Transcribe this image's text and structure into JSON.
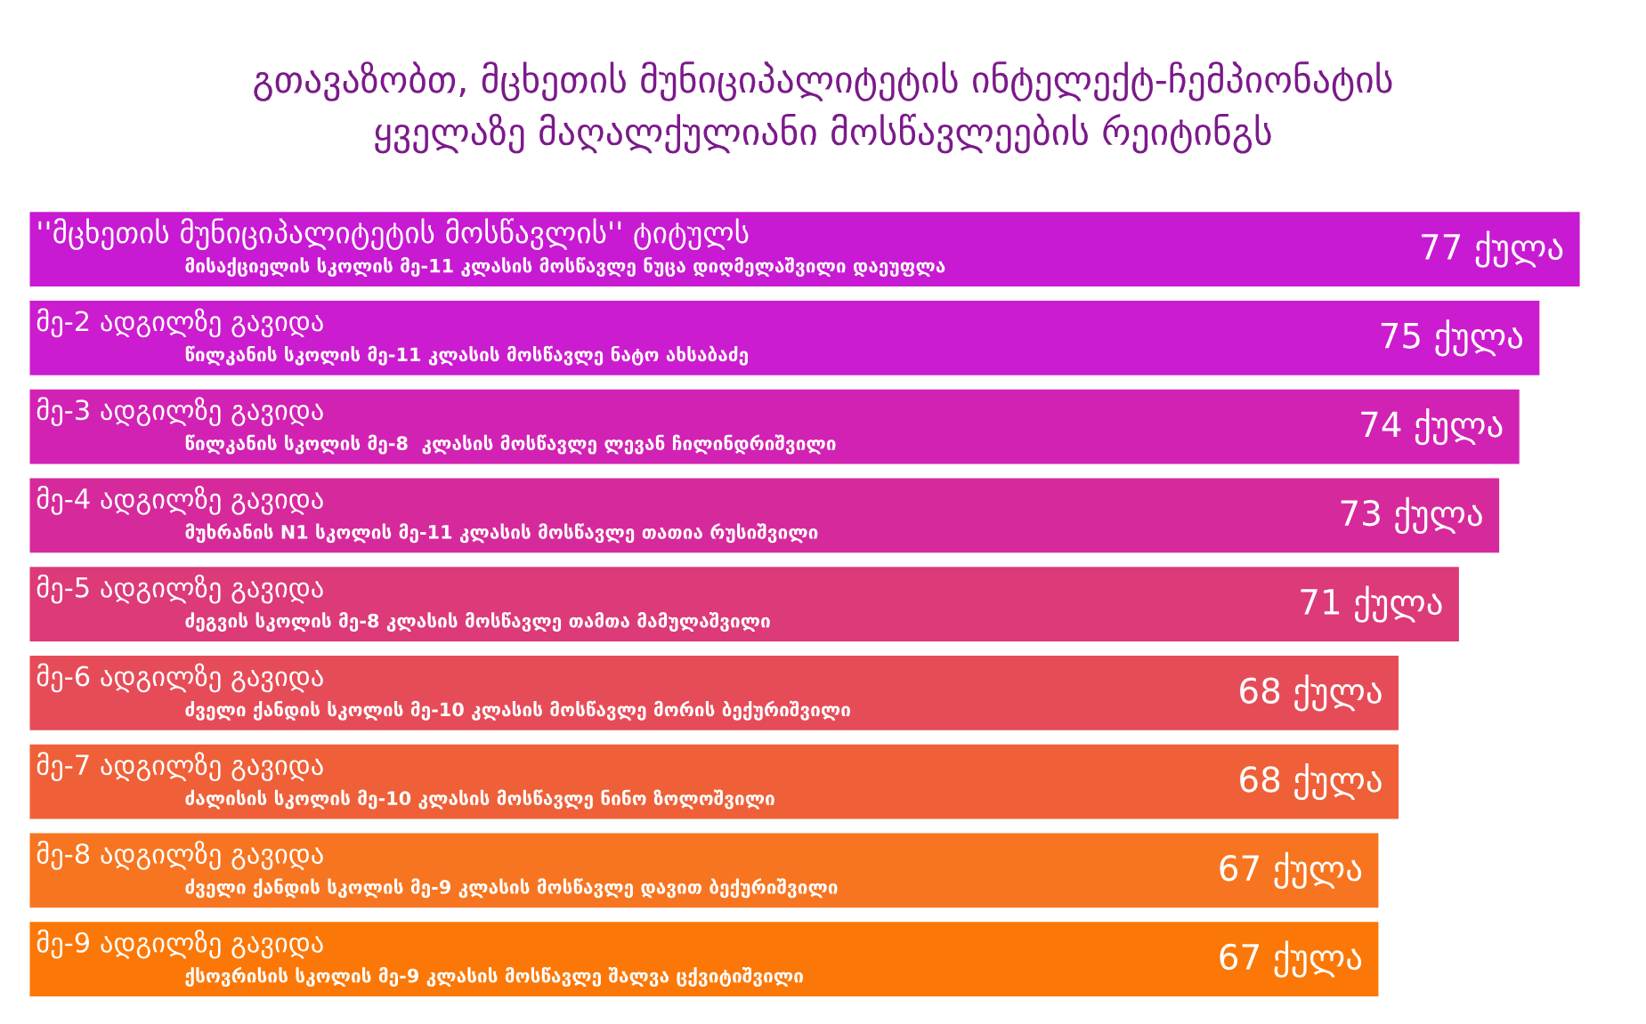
{
  "chart_data": {
    "type": "bar",
    "orientation": "horizontal",
    "title": "გთავაზობთ, მცხეთის მუნიციპალიტეტის ინტელექტ-ჩემპიონატის\nყველაზე მაღალქულიანი მოსწავლეების რეიტინგს",
    "categories": [
      "''მცხეთის მუნიციპალიტეტის მოსწავლის'' ტიტულს\nმისაქციელის სკოლის მე-11 კლასის მოსწავლე ნუცა დიღმელაშვილი დაეუფლა",
      "მე-2 ადგილზე გავიდა\nწილკანის სკოლის მე-11 კლასის მოსწავლე ნატო ახსაბაძე",
      "მე-3 ადგილზე გავიდა\nწილკანის სკოლის მე-8  კლასის მოსწავლე ლევან ჩილინდრიშვილი",
      "მე-4 ადგილზე გავიდა\nმუხრანის N1 სკოლის მე-11 კლასის მოსწავლე თათია რუსიშვილი",
      "მე-5 ადგილზე გავიდა\nძეგვის სკოლის მე-8 კლასის მოსწავლე თამთა მამულაშვილი",
      "მე-6 ადგილზე გავიდა\nძველი ქანდის სკოლის მე-10 კლასის მოსწავლე მორის ბექურიშვილი",
      "მე-7 ადგილზე გავიდა\nძალისის სკოლის მე-10 კლასის მოსწავლე ნინო ზოლოშვილი",
      "მე-8 ადგილზე გავიდა\nძველი ქანდის სკოლის მე-9 კლასის მოსწავლე დავით ბექურიშვილი",
      "მე-9 ადგილზე გავიდა\nქსოვრისის სკოლის მე-9 კლასის მოსწავლე შალვა ცქვიტიშვილი"
    ],
    "values": [
      77,
      75,
      74,
      73,
      71,
      68,
      68,
      67,
      67
    ],
    "value_labels": [
      "77 ქულა",
      "75 ქულა",
      "74 ქულა",
      "73 ქულა",
      "71 ქულა",
      "68 ქულა",
      "68 ქულა",
      "67 ქულა",
      "67 ქულა"
    ],
    "colors": [
      "#c81ad2",
      "#cc1ccf",
      "#d222b4",
      "#d62a9c",
      "#dc3a78",
      "#e64c58",
      "#ef6038",
      "#f77520",
      "#fb7808"
    ]
  }
}
